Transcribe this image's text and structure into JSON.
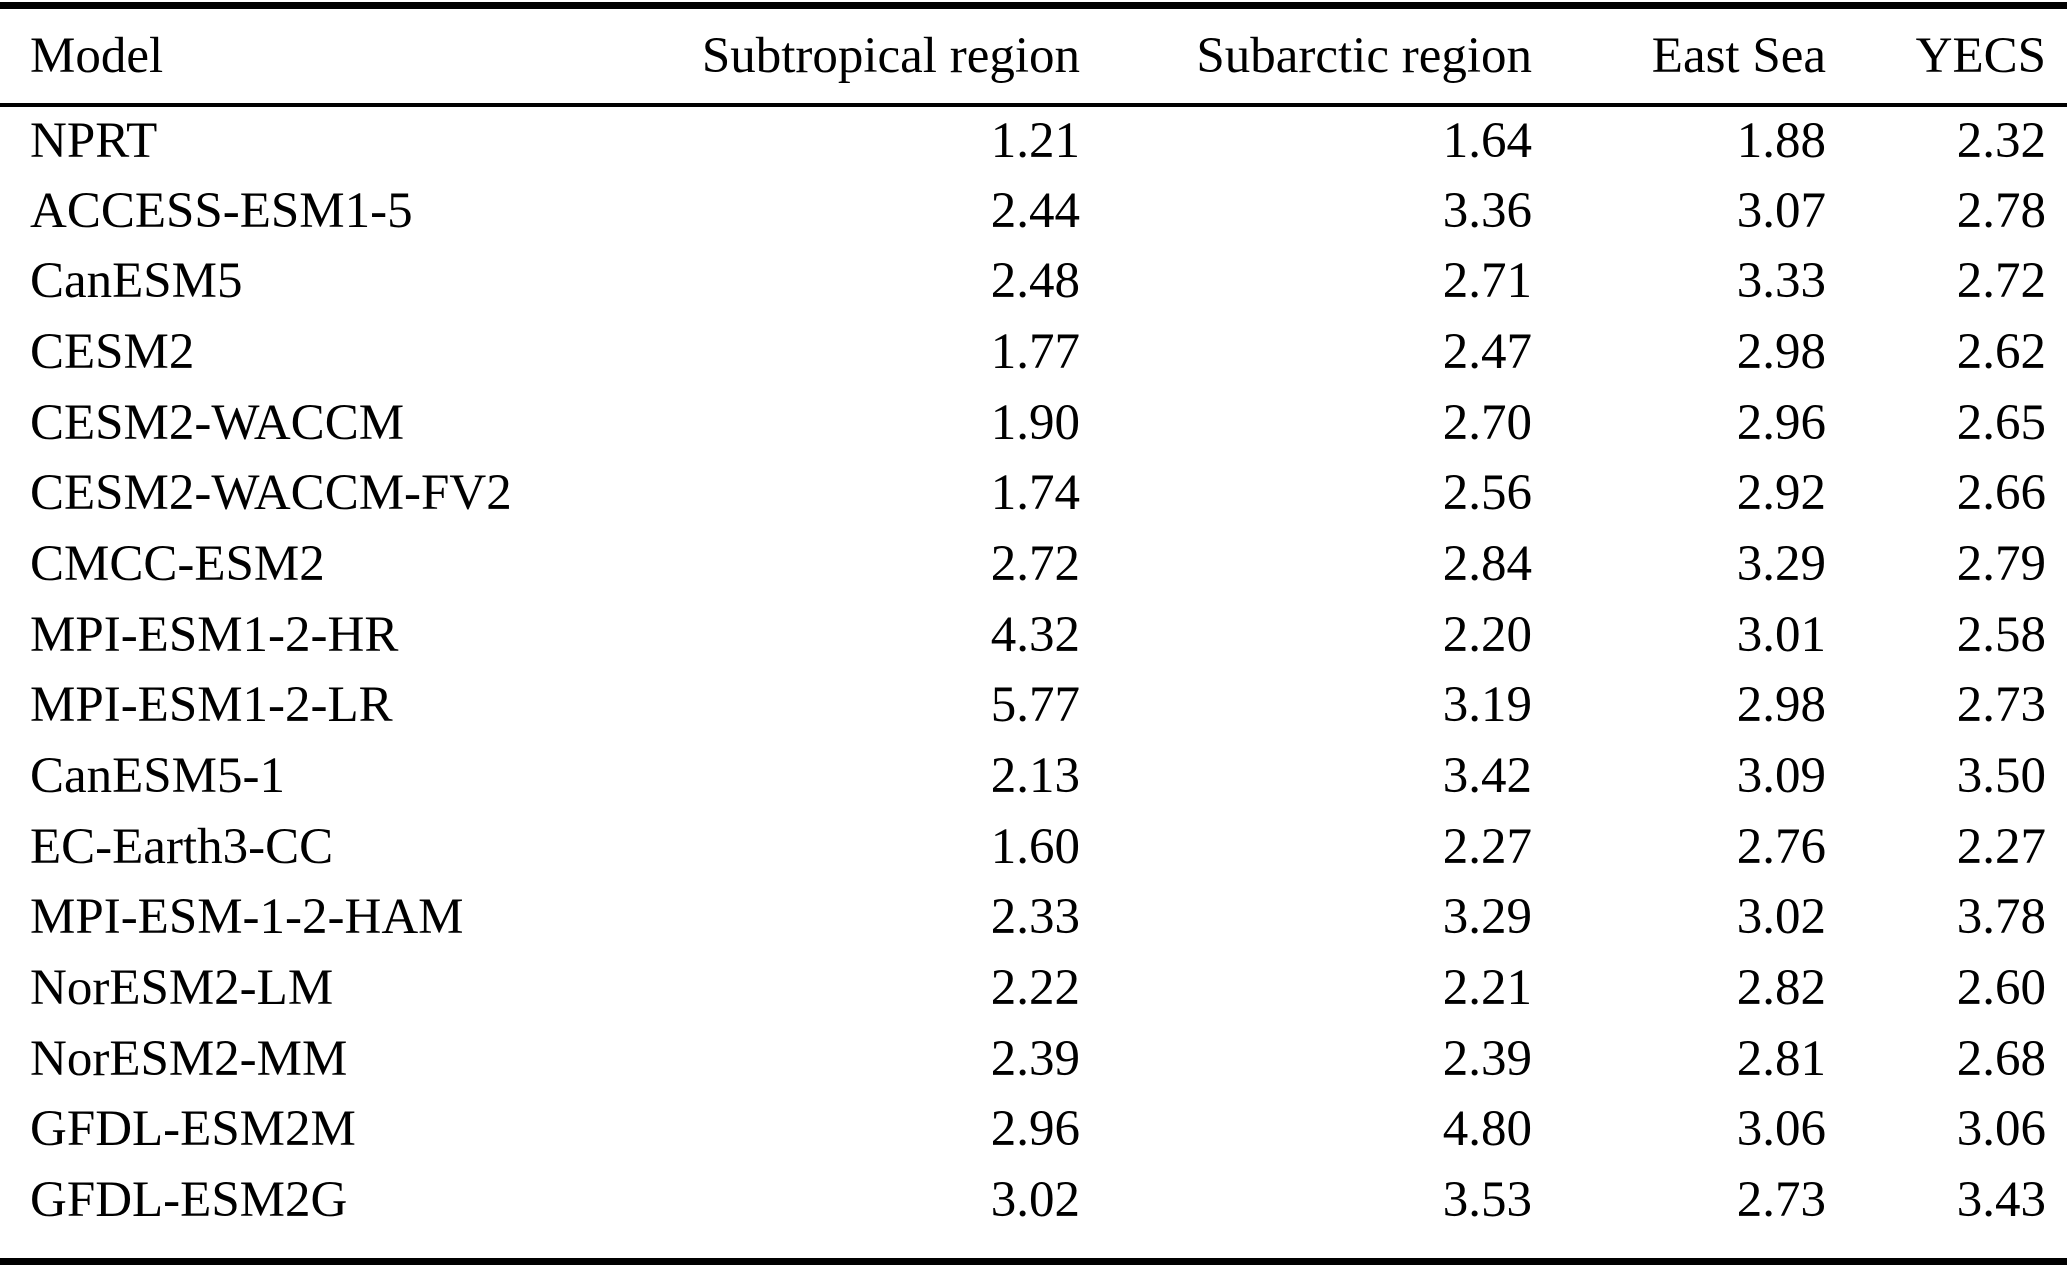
{
  "colors": {
    "background": "#ffffff",
    "text": "#000000",
    "rule": "#000000"
  },
  "table": {
    "columns": [
      "Model",
      "Subtropical region",
      "Subarctic region",
      "East Sea",
      "YECS"
    ],
    "rows": [
      {
        "model": "NPRT",
        "values": [
          "1.21",
          "1.64",
          "1.88",
          "2.32"
        ]
      },
      {
        "model": "ACCESS-ESM1-5",
        "values": [
          "2.44",
          "3.36",
          "3.07",
          "2.78"
        ]
      },
      {
        "model": "CanESM5",
        "values": [
          "2.48",
          "2.71",
          "3.33",
          "2.72"
        ]
      },
      {
        "model": "CESM2",
        "values": [
          "1.77",
          "2.47",
          "2.98",
          "2.62"
        ]
      },
      {
        "model": "CESM2-WACCM",
        "values": [
          "1.90",
          "2.70",
          "2.96",
          "2.65"
        ]
      },
      {
        "model": "CESM2-WACCM-FV2",
        "values": [
          "1.74",
          "2.56",
          "2.92",
          "2.66"
        ]
      },
      {
        "model": "CMCC-ESM2",
        "values": [
          "2.72",
          "2.84",
          "3.29",
          "2.79"
        ]
      },
      {
        "model": "MPI-ESM1-2-HR",
        "values": [
          "4.32",
          "2.20",
          "3.01",
          "2.58"
        ]
      },
      {
        "model": "MPI-ESM1-2-LR",
        "values": [
          "5.77",
          "3.19",
          "2.98",
          "2.73"
        ]
      },
      {
        "model": "CanESM5-1",
        "values": [
          "2.13",
          "3.42",
          "3.09",
          "3.50"
        ]
      },
      {
        "model": "EC-Earth3-CC",
        "values": [
          "1.60",
          "2.27",
          "2.76",
          "2.27"
        ]
      },
      {
        "model": "MPI-ESM-1-2-HAM",
        "values": [
          "2.33",
          "3.29",
          "3.02",
          "3.78"
        ]
      },
      {
        "model": "NorESM2-LM",
        "values": [
          "2.22",
          "2.21",
          "2.82",
          "2.60"
        ]
      },
      {
        "model": "NorESM2-MM",
        "values": [
          "2.39",
          "2.39",
          "2.81",
          "2.68"
        ]
      },
      {
        "model": "GFDL-ESM2M",
        "values": [
          "2.96",
          "4.80",
          "3.06",
          "3.06"
        ]
      },
      {
        "model": "GFDL-ESM2G",
        "values": [
          "3.02",
          "3.53",
          "2.73",
          "3.43"
        ]
      }
    ]
  }
}
